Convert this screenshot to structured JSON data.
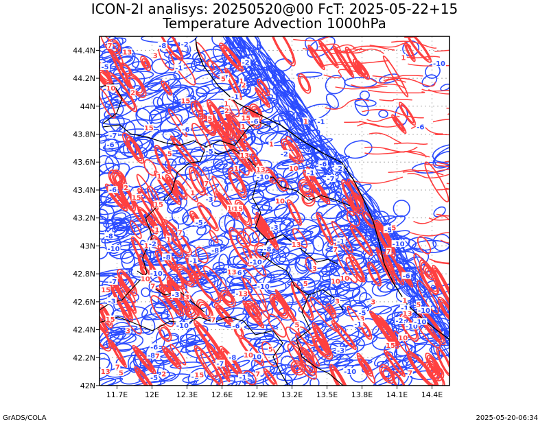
{
  "chart_data": {
    "type": "contour",
    "title_line1": "ICON-2I analisys: 20250520@00 FcT: 2025-05-22+15",
    "title_line2": "Temperature Advection 1000hPa",
    "x_ticks": [
      "11.7E",
      "12E",
      "12.3E",
      "12.6E",
      "12.9E",
      "13.2E",
      "13.5E",
      "13.8E",
      "14.1E",
      "14.4E"
    ],
    "x_tick_values": [
      11.7,
      12.0,
      12.3,
      12.6,
      12.9,
      13.2,
      13.5,
      13.8,
      14.1,
      14.4
    ],
    "y_ticks": [
      "42N",
      "42.2N",
      "42.4N",
      "42.6N",
      "42.8N",
      "43N",
      "43.2N",
      "43.4N",
      "43.6N",
      "43.8N",
      "44N",
      "44.2N",
      "44.4N"
    ],
    "y_tick_values": [
      42.0,
      42.2,
      42.4,
      42.6,
      42.8,
      43.0,
      43.2,
      43.4,
      43.6,
      43.8,
      44.0,
      44.2,
      44.4
    ],
    "xlim": [
      11.55,
      14.55
    ],
    "ylim": [
      42.0,
      44.5
    ],
    "grid": true,
    "series": [
      {
        "color": "#ff4040"
      },
      {
        "color": "#2b4bff"
      }
    ],
    "contour_labels": [
      "1",
      "2",
      "3",
      "5",
      "7",
      "10",
      "13",
      "15",
      "-1",
      "-2",
      "-3",
      "-5",
      "-6",
      "-7",
      "-8",
      "-10"
    ],
    "coast_color": "#000000",
    "background_color": "#ffffff"
  },
  "footer": {
    "left": "GrADS/COLA",
    "right": "2025-05-20-06:34"
  }
}
